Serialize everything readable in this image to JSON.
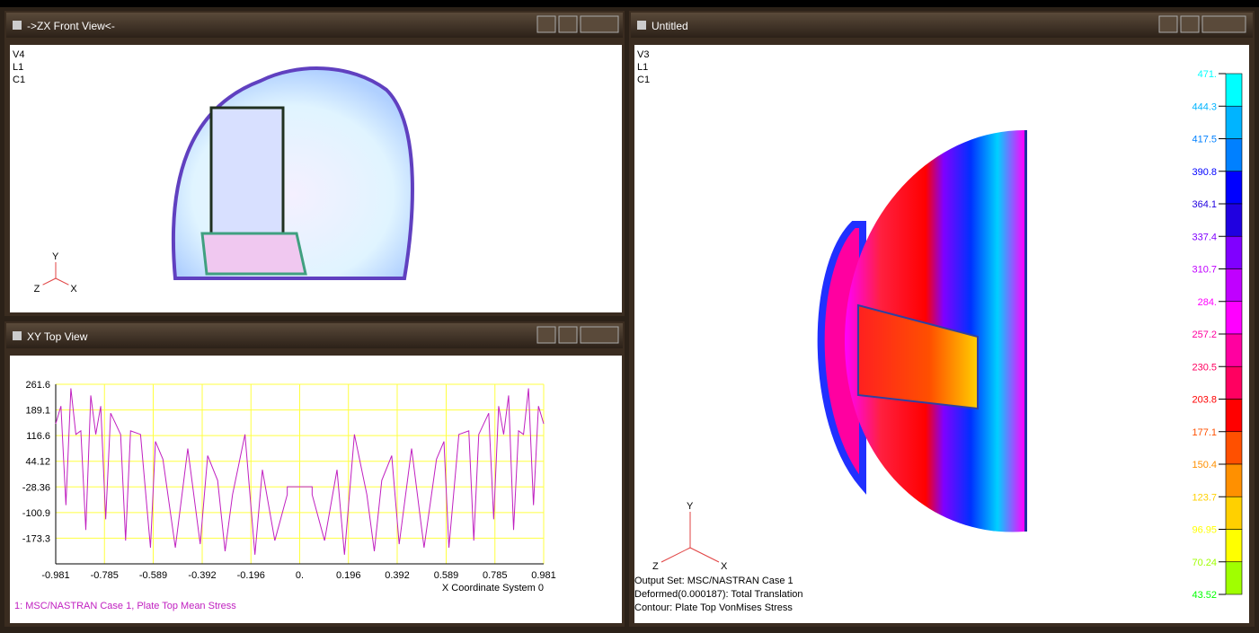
{
  "windows": {
    "front": {
      "title": "->ZX Front View<-",
      "labels": [
        "V4",
        "L1",
        "C1"
      ],
      "triad": [
        "Y",
        "Z",
        "X"
      ]
    },
    "top": {
      "title": "XY Top View"
    },
    "main": {
      "title": "Untitled",
      "labels": [
        "V3",
        "L1",
        "C1"
      ],
      "triad": [
        "Y",
        "Z",
        "X"
      ],
      "info": [
        "Output Set: MSC/NASTRAN Case 1",
        "Deformed(0.000187): Total Translation",
        "Contour: Plate Top VonMises Stress"
      ],
      "contour_legend": {
        "labels": [
          "471.",
          "444.3",
          "417.5",
          "390.8",
          "364.1",
          "337.4",
          "310.7",
          "284.",
          "257.2",
          "230.5",
          "203.8",
          "177.1",
          "150.4",
          "123.7",
          "96.95",
          "70.24",
          "43.52"
        ],
        "colors": [
          "#00ffff",
          "#00b4ff",
          "#0080ff",
          "#0000ff",
          "#2000e0",
          "#8000ff",
          "#c000ff",
          "#ff00ff",
          "#ff00a0",
          "#ff0060",
          "#ff0000",
          "#ff5000",
          "#ff9000",
          "#ffd000",
          "#ffff00",
          "#a0ff00",
          "#00ff00"
        ]
      }
    }
  },
  "chart_data": {
    "type": "line",
    "x_label": "X Coordinate System 0",
    "xlim": [
      -0.981,
      0.981
    ],
    "ylim": [
      -245.8,
      261.6
    ],
    "xticks": [
      -0.981,
      -0.785,
      -0.589,
      -0.392,
      -0.196,
      {
        "value": 0,
        "label": "0."
      },
      0.196,
      0.392,
      0.589,
      0.785,
      0.981
    ],
    "yticks": [
      261.6,
      189.1,
      116.6,
      44.12,
      -28.36,
      -100.9,
      -173.3
    ],
    "grid": true,
    "series": [
      {
        "name": "1: MSC/NASTRAN Case 1, Plate Top Mean Stress",
        "color": "#c020c0",
        "x": [
          -0.981,
          -0.96,
          -0.94,
          -0.92,
          -0.9,
          -0.88,
          -0.86,
          -0.84,
          -0.82,
          -0.8,
          -0.78,
          -0.76,
          -0.72,
          -0.7,
          -0.68,
          -0.64,
          -0.6,
          -0.58,
          -0.55,
          -0.5,
          -0.45,
          -0.4,
          -0.37,
          -0.33,
          -0.3,
          -0.27,
          -0.22,
          -0.18,
          -0.15,
          -0.1,
          -0.05,
          -0.05,
          0.05,
          0.05,
          0.1,
          0.15,
          0.18,
          0.22,
          0.27,
          0.3,
          0.33,
          0.37,
          0.4,
          0.45,
          0.5,
          0.55,
          0.58,
          0.6,
          0.64,
          0.68,
          0.7,
          0.72,
          0.76,
          0.78,
          0.8,
          0.82,
          0.84,
          0.86,
          0.88,
          0.9,
          0.92,
          0.94,
          0.96,
          0.981
        ],
        "values": [
          150,
          200,
          -80,
          250,
          120,
          130,
          -150,
          230,
          120,
          200,
          -120,
          180,
          120,
          -180,
          130,
          120,
          -200,
          100,
          50,
          -200,
          80,
          -190,
          60,
          -10,
          -210,
          -50,
          120,
          -220,
          20,
          -180,
          -50,
          -28,
          -28,
          -50,
          -180,
          20,
          -220,
          120,
          -50,
          -210,
          -10,
          60,
          -190,
          80,
          -200,
          50,
          100,
          -200,
          120,
          130,
          -180,
          120,
          180,
          -120,
          200,
          120,
          230,
          -150,
          130,
          120,
          250,
          -80,
          200,
          150
        ]
      }
    ]
  }
}
